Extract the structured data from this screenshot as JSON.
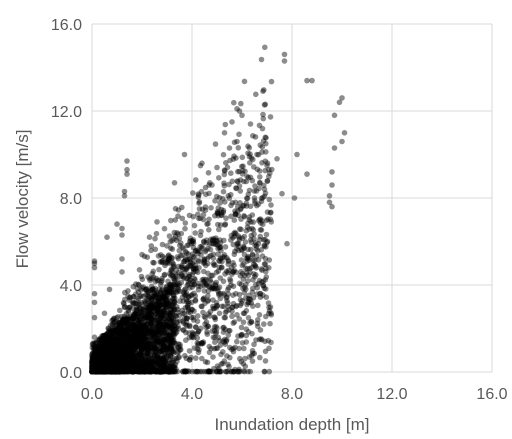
{
  "chart_data": {
    "type": "scatter",
    "title": "",
    "xlabel": "Inundation depth [m]",
    "ylabel": "Flow velocity [m/s]",
    "xlim": [
      0,
      16
    ],
    "ylim": [
      0,
      16
    ],
    "x_ticks": [
      "0.0",
      "4.0",
      "8.0",
      "12.0",
      "16.0"
    ],
    "y_ticks": [
      "0.0",
      "4.0",
      "8.0",
      "12.0",
      "16.0"
    ],
    "grid": true,
    "legend": "none",
    "marker_color": "#000000",
    "marker_alpha": 0.45,
    "series": [
      {
        "points": [
          [
            7.7,
            14.6
          ],
          [
            7.7,
            14.3
          ],
          [
            8.6,
            13.4
          ],
          [
            8.8,
            13.4
          ],
          [
            10.0,
            12.6
          ],
          [
            9.9,
            12.4
          ],
          [
            9.7,
            11.8
          ],
          [
            10.1,
            11.0
          ],
          [
            10.0,
            10.6
          ],
          [
            9.7,
            10.3
          ],
          [
            9.6,
            9.2
          ],
          [
            9.6,
            8.6
          ],
          [
            9.5,
            8.1
          ],
          [
            9.5,
            7.8
          ],
          [
            9.6,
            7.6
          ],
          [
            5.8,
            12.1
          ],
          [
            5.9,
            12.0
          ],
          [
            6.0,
            11.8
          ],
          [
            5.6,
            11.5
          ],
          [
            5.3,
            11.0
          ],
          [
            5.8,
            10.6
          ],
          [
            6.6,
            10.0
          ],
          [
            6.3,
            9.9
          ],
          [
            5.5,
            10.3
          ],
          [
            5.0,
            9.4
          ],
          [
            4.4,
            9.6
          ],
          [
            3.7,
            10.0
          ],
          [
            3.3,
            8.7
          ],
          [
            4.8,
            8.6
          ],
          [
            6.2,
            9.0
          ],
          [
            7.0,
            9.5
          ],
          [
            7.4,
            9.8
          ],
          [
            8.2,
            10.0
          ],
          [
            8.6,
            9.1
          ],
          [
            7.6,
            8.2
          ],
          [
            8.1,
            8.0
          ],
          [
            7.8,
            5.9
          ],
          [
            6.4,
            6.6
          ],
          [
            6.1,
            5.4
          ],
          [
            5.6,
            4.5
          ],
          [
            5.1,
            3.9
          ],
          [
            5.7,
            2.3
          ],
          [
            4.9,
            1.9
          ],
          [
            6.2,
            3.1
          ],
          [
            6.7,
            4.2
          ],
          [
            4.3,
            7.5
          ],
          [
            3.9,
            7.2
          ],
          [
            4.6,
            6.8
          ],
          [
            3.4,
            6.4
          ],
          [
            3.0,
            5.8
          ],
          [
            2.6,
            6.9
          ],
          [
            2.3,
            6.2
          ],
          [
            2.0,
            5.4
          ],
          [
            1.9,
            4.7
          ],
          [
            2.8,
            4.3
          ],
          [
            3.6,
            4.9
          ],
          [
            4.1,
            4.3
          ],
          [
            3.1,
            3.6
          ],
          [
            2.4,
            3.8
          ],
          [
            1.5,
            3.3
          ],
          [
            3.5,
            2.6
          ],
          [
            4.0,
            1.6
          ],
          [
            4.7,
            0.9
          ],
          [
            3.3,
            0.6
          ],
          [
            3.0,
            1.5
          ],
          [
            2.1,
            2.5
          ],
          [
            2.5,
            1.8
          ],
          [
            1.2,
            2.0
          ],
          [
            1.0,
            1.1
          ],
          [
            0.6,
            0.7
          ],
          [
            0.3,
            0.3
          ],
          [
            0.8,
            0.2
          ],
          [
            1.7,
            0.5
          ],
          [
            2.2,
            0.9
          ],
          [
            1.9,
            1.6
          ],
          [
            0.1,
            5.1
          ],
          [
            0.1,
            5.0
          ],
          [
            0.1,
            4.8
          ],
          [
            0.1,
            3.6
          ],
          [
            0.1,
            3.2
          ],
          [
            0.1,
            2.5
          ],
          [
            0.1,
            1.6
          ],
          [
            0.1,
            0.8
          ],
          [
            0.1,
            0.3
          ],
          [
            1.2,
            6.6
          ],
          [
            1.2,
            6.3
          ],
          [
            1.2,
            5.2
          ],
          [
            1.2,
            4.6
          ],
          [
            1.3,
            8.3
          ],
          [
            1.3,
            8.1
          ],
          [
            1.4,
            9.7
          ],
          [
            1.4,
            9.3
          ],
          [
            1.4,
            9.1
          ],
          [
            1.0,
            6.8
          ],
          [
            0.6,
            6.2
          ],
          [
            0.7,
            3.8
          ],
          [
            0.5,
            2.7
          ]
        ]
      }
    ]
  }
}
